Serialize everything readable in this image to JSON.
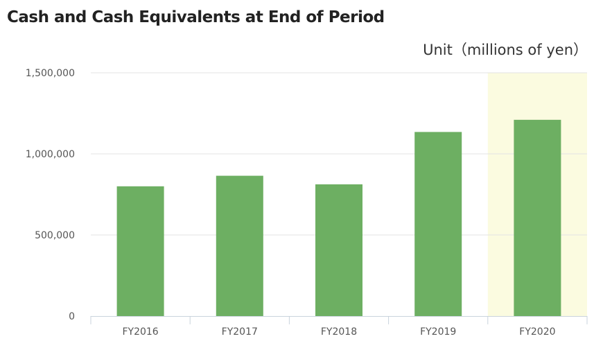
{
  "chart_data": {
    "type": "bar",
    "title": "Cash and Cash Equivalents at End of Period",
    "unit_label": "Unit（millions of yen）",
    "categories": [
      "FY2016",
      "FY2017",
      "FY2018",
      "FY2019",
      "FY2020"
    ],
    "values": [
      800000,
      865000,
      812000,
      1135000,
      1210000
    ],
    "ylim": [
      0,
      1500000
    ],
    "yticks": [
      0,
      500000,
      1000000,
      1500000
    ],
    "ytick_labels": [
      "0",
      "500,000",
      "1,000,000",
      "1,500,000"
    ],
    "highlight_category": "FY2020",
    "grid": true,
    "colors": {
      "bar": "#6daf62",
      "highlight_band": "#fbfbe0",
      "grid": "#e3e3e3",
      "axis": "#c9d3dc"
    }
  }
}
